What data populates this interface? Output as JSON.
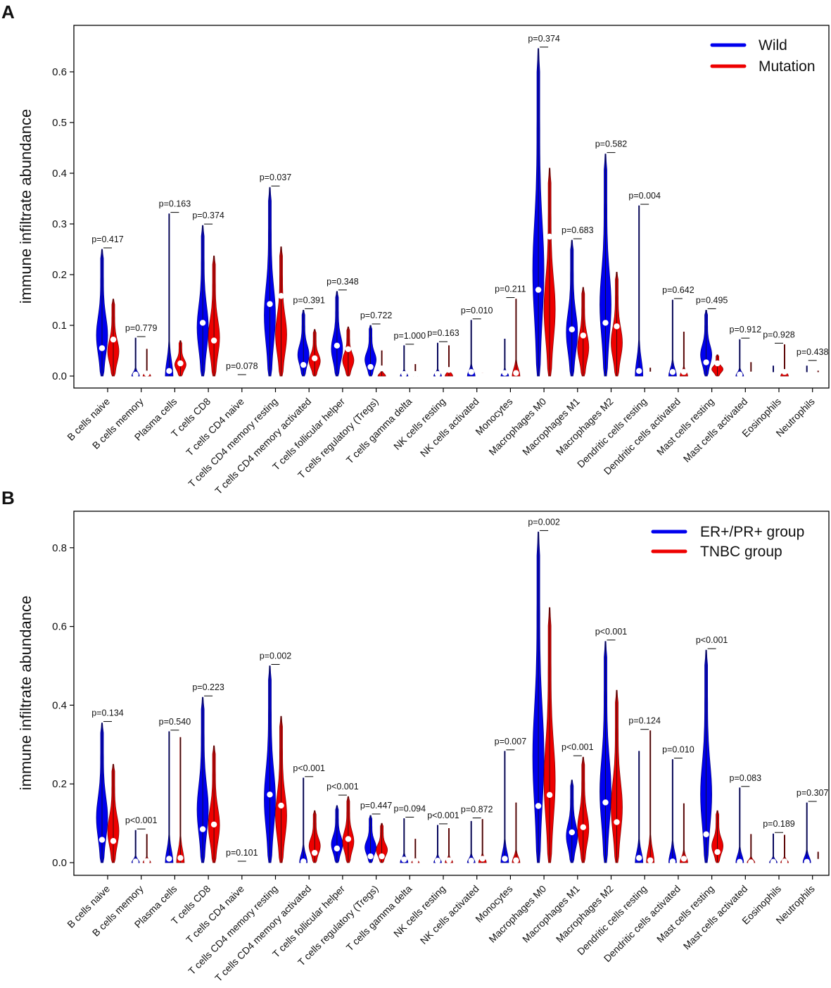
{
  "chart_data": [
    {
      "type": "violin",
      "panel_label": "A",
      "ylabel": "immune infiltrate abundance",
      "ylim": [
        0,
        0.7
      ],
      "yticks": [
        "0.0",
        "0.1",
        "0.2",
        "0.3",
        "0.4",
        "0.5",
        "0.6"
      ],
      "legend": [
        {
          "name": "Wild",
          "color": "#0000ee"
        },
        {
          "name": "Mutation",
          "color": "#ee0000"
        }
      ],
      "categories": [
        "B cells naive",
        "B cells memory",
        "Plasma cells",
        "T cells CD8",
        "T cells CD4 naive",
        "T cells CD4 memory resting",
        "T cells CD4 memory activated",
        "T cells follicular helper",
        "T cells regulatory (Tregs)",
        "T cells gamma delta",
        "NK cells resting",
        "NK cells activated",
        "Monocytes",
        "Macrophages M0",
        "Macrophages M1",
        "Macrophages M2",
        "Dendritic cells resting",
        "Dendritic cells activated",
        "Mast cells resting",
        "Mast cells activated",
        "Eosinophils",
        "Neutrophils"
      ],
      "p_values": [
        "p=0.417",
        "p=0.779",
        "p=0.163",
        "p=0.374",
        "p=0.078",
        "p=0.037",
        "p=0.391",
        "p=0.348",
        "p=0.722",
        "p=1.000",
        "p=0.163",
        "p=0.010",
        "p=0.211",
        "p=0.374",
        "p=0.683",
        "p=0.582",
        "p=0.004",
        "p=0.642",
        "p=0.495",
        "p=0.912",
        "p=0.928",
        "p=0.438"
      ],
      "bracket_heights": [
        0.25,
        0.075,
        0.32,
        0.297,
        0.0,
        0.372,
        0.13,
        0.167,
        0.1,
        0.06,
        0.065,
        0.11,
        0.152,
        0.646,
        0.268,
        0.438,
        0.336,
        0.15,
        0.13,
        0.072,
        0.062,
        0.028
      ],
      "series": [
        {
          "name": "Wild",
          "medians": [
            0.055,
            0.003,
            0.01,
            0.105,
            0.0,
            0.142,
            0.022,
            0.06,
            0.018,
            0.004,
            0.004,
            0.008,
            0.006,
            0.17,
            0.092,
            0.105,
            0.01,
            0.008,
            0.027,
            0.003,
            0.002,
            0.002
          ],
          "maxima": [
            0.25,
            0.075,
            0.32,
            0.297,
            0.001,
            0.372,
            0.13,
            0.167,
            0.1,
            0.06,
            0.065,
            0.11,
            0.073,
            0.646,
            0.268,
            0.438,
            0.336,
            0.15,
            0.13,
            0.072,
            0.02,
            0.02
          ]
        },
        {
          "name": "Mutation",
          "medians": [
            0.072,
            0.005,
            0.025,
            0.07,
            0.0,
            0.158,
            0.035,
            0.053,
            0.015,
            0.004,
            0.012,
            0.001,
            0.006,
            0.275,
            0.08,
            0.098,
            0.003,
            0.008,
            0.025,
            0.003,
            0.008,
            0.002
          ],
          "maxima": [
            0.152,
            0.053,
            0.07,
            0.237,
            0.001,
            0.255,
            0.092,
            0.097,
            0.05,
            0.023,
            0.06,
            0.006,
            0.152,
            0.41,
            0.175,
            0.205,
            0.016,
            0.087,
            0.042,
            0.027,
            0.062,
            0.01
          ]
        }
      ]
    },
    {
      "type": "violin",
      "panel_label": "B",
      "ylabel": "immune infiltrate abundance",
      "ylim": [
        0,
        0.9
      ],
      "yticks": [
        "0.0",
        "0.2",
        "0.4",
        "0.6",
        "0.8"
      ],
      "legend": [
        {
          "name": "ER+/PR+ group",
          "color": "#0000ee"
        },
        {
          "name": "TNBC group",
          "color": "#ee0000"
        }
      ],
      "categories": [
        "B cells naive",
        "B cells memory",
        "Plasma cells",
        "T cells CD8",
        "T cells CD4 naive",
        "T cells CD4 memory resting",
        "T cells CD4 memory activated",
        "T cells follicular helper",
        "T cells regulatory (Tregs)",
        "T cells gamma delta",
        "NK cells resting",
        "NK cells activated",
        "Monocytes",
        "Macrophages M0",
        "Macrophages M1",
        "Macrophages M2",
        "Dendritic cells resting",
        "Dendritic cells activated",
        "Mast cells resting",
        "Mast cells activated",
        "Eosinophils",
        "Neutrophils"
      ],
      "p_values": [
        "p=0.134",
        "p<0.001",
        "p=0.540",
        "p=0.223",
        "p=0.101",
        "p=0.002",
        "p<0.001",
        "p<0.001",
        "p=0.447",
        "p=0.094",
        "p<0.001",
        "p=0.872",
        "p=0.007",
        "p=0.002",
        "p<0.001",
        "p<0.001",
        "p=0.124",
        "p=0.010",
        "p<0.001",
        "p=0.083",
        "p=0.189",
        "p=0.307"
      ],
      "bracket_heights": [
        0.355,
        0.082,
        0.333,
        0.42,
        0.0,
        0.5,
        0.215,
        0.168,
        0.12,
        0.112,
        0.095,
        0.11,
        0.283,
        0.84,
        0.268,
        0.562,
        0.335,
        0.262,
        0.54,
        0.19,
        0.073,
        0.152
      ],
      "series": [
        {
          "name": "ER+/PR+ group",
          "medians": [
            0.058,
            0.003,
            0.01,
            0.085,
            0.0,
            0.173,
            0.003,
            0.036,
            0.016,
            0.008,
            0.005,
            0.005,
            0.01,
            0.144,
            0.077,
            0.153,
            0.012,
            0.003,
            0.072,
            0.002,
            0.002,
            0.002
          ],
          "maxima": [
            0.355,
            0.082,
            0.333,
            0.42,
            0.001,
            0.5,
            0.215,
            0.145,
            0.12,
            0.112,
            0.095,
            0.105,
            0.283,
            0.84,
            0.21,
            0.562,
            0.283,
            0.262,
            0.54,
            0.19,
            0.073,
            0.152
          ]
        },
        {
          "name": "TNBC group",
          "medians": [
            0.055,
            0.004,
            0.012,
            0.097,
            0.0,
            0.145,
            0.025,
            0.06,
            0.016,
            0.004,
            0.006,
            0.01,
            0.006,
            0.172,
            0.09,
            0.103,
            0.006,
            0.01,
            0.027,
            0.001,
            0.003,
            0.002
          ],
          "maxima": [
            0.25,
            0.072,
            0.318,
            0.297,
            0.001,
            0.372,
            0.132,
            0.168,
            0.1,
            0.06,
            0.087,
            0.11,
            0.152,
            0.648,
            0.268,
            0.438,
            0.335,
            0.15,
            0.132,
            0.072,
            0.07,
            0.027
          ]
        }
      ]
    }
  ]
}
